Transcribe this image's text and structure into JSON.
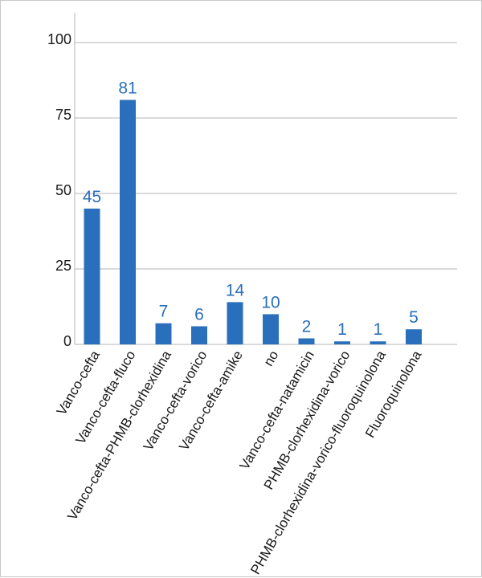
{
  "chart_data": {
    "type": "bar",
    "categories": [
      "Vanco-cefta",
      "Vanco-cefta-fluco",
      "Vanco-cefta-PHMB-clorhexidina",
      "Vanco-cefta-vorico",
      "Vanco-cefta-amike",
      "no",
      "Vanco-cefta-natamicin",
      "PHMB-clorhexidina-vorico",
      "PHMB-clorhexidina-vorico-fluoroquinolona",
      "Fluoroquinolona"
    ],
    "values": [
      45,
      81,
      7,
      6,
      14,
      10,
      2,
      1,
      1,
      5
    ],
    "ylim": [
      0,
      100
    ],
    "yticks": [
      0,
      25,
      50,
      75,
      100
    ],
    "title": "",
    "xlabel": "",
    "ylabel": "",
    "grid": true,
    "bar_color": "#2a6fbb",
    "grid_color": "#b4b4b4"
  }
}
